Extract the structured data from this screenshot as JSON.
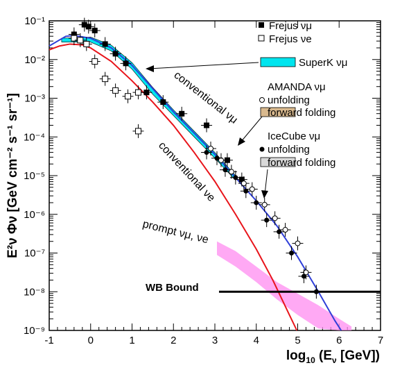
{
  "chart_data": {
    "type": "scatter",
    "xlabel_main": "log",
    "xlabel_sub": "10",
    "xlabel_rest": " (E",
    "xlabel_nu": "ν",
    "xlabel_unit": " [GeV])",
    "ylabel": "E²ν Φν [GeV cm⁻² s⁻¹ sr⁻¹]",
    "xlim": [
      -1,
      7
    ],
    "ylim_log10": [
      -9,
      -1
    ],
    "x_ticks": [
      "-1",
      "0",
      "1",
      "2",
      "3",
      "4",
      "5",
      "6",
      "7"
    ],
    "y_ticks": [
      "10⁻⁹",
      "10⁻⁸",
      "10⁻⁷",
      "10⁻⁶",
      "10⁻⁵",
      "10⁻⁴",
      "10⁻³",
      "10⁻²",
      "10⁻¹"
    ],
    "y_scale": "log",
    "legend": {
      "frejus_mu": "Frejus νμ",
      "frejus_e": "Frejus νe",
      "superk": "SuperK νμ",
      "amanda_title": "AMANDA νμ",
      "amanda_unfold": "unfolding",
      "amanda_ff": "forward folding",
      "icecube_title": "IceCube νμ",
      "icecube_unfold": "unfolding",
      "icecube_ff": "forward folding"
    },
    "annotations": {
      "conv_mu": "conventional νμ",
      "conv_e": "conventional νe",
      "prompt": "prompt νμ, νe",
      "wb": "WB Bound"
    },
    "colors": {
      "conv_e": "#e8141a",
      "conv_mu_band": "#2e3ed8",
      "superk": "#00e5ee",
      "prompt": "#ff8cf0",
      "amanda_ff": "#d9b98e",
      "icecube_ff": "#d9d9d9"
    },
    "series": [
      {
        "name": "Frejus νμ",
        "marker": "filled-square",
        "points": [
          [
            -0.4,
            -1.35
          ],
          [
            -0.15,
            -1.1
          ],
          [
            -0.05,
            -1.15
          ],
          [
            0.1,
            -1.25
          ],
          [
            0.35,
            -1.6
          ],
          [
            0.6,
            -1.85
          ],
          [
            0.85,
            -2.1
          ],
          [
            1.35,
            -2.85
          ],
          [
            1.75,
            -3.1
          ],
          [
            2.2,
            -3.4
          ],
          [
            2.8,
            -3.7
          ],
          [
            3.3,
            -4.6
          ],
          [
            3.65,
            -5.1
          ]
        ]
      },
      {
        "name": "Frejus νe",
        "marker": "open-square",
        "points": [
          [
            -0.4,
            -1.45
          ],
          [
            -0.25,
            -1.5
          ],
          [
            -0.1,
            -1.6
          ],
          [
            0.1,
            -2.05
          ],
          [
            0.35,
            -2.5
          ],
          [
            0.6,
            -2.8
          ],
          [
            0.9,
            -2.95
          ],
          [
            1.15,
            -2.85
          ],
          [
            1.15,
            -3.85
          ]
        ]
      },
      {
        "name": "AMANDA νμ unfolding",
        "marker": "open-circle",
        "points": [
          [
            2.9,
            -4.3
          ],
          [
            3.15,
            -4.6
          ],
          [
            3.4,
            -4.9
          ],
          [
            3.7,
            -5.2
          ],
          [
            3.9,
            -5.35
          ],
          [
            4.2,
            -5.75
          ],
          [
            4.45,
            -6.1
          ],
          [
            4.7,
            -6.4
          ],
          [
            5.0,
            -6.75
          ],
          [
            5.2,
            -7.5
          ]
        ]
      },
      {
        "name": "IceCube νμ unfolding",
        "marker": "filled-circle",
        "points": [
          [
            2.8,
            -4.4
          ],
          [
            3.05,
            -4.55
          ],
          [
            3.25,
            -4.85
          ],
          [
            3.5,
            -5.05
          ],
          [
            3.75,
            -5.4
          ],
          [
            4.0,
            -5.7
          ],
          [
            4.25,
            -6.15
          ],
          [
            4.55,
            -6.45
          ],
          [
            4.85,
            -7.0
          ],
          [
            5.15,
            -7.6
          ],
          [
            5.45,
            -8.0
          ]
        ]
      }
    ],
    "curves": {
      "conv_e": [
        [
          -1,
          -1.75
        ],
        [
          -0.75,
          -1.65
        ],
        [
          -0.5,
          -1.6
        ],
        [
          -0.2,
          -1.62
        ],
        [
          0,
          -1.7
        ],
        [
          0.5,
          -2.05
        ],
        [
          1,
          -2.55
        ],
        [
          1.5,
          -3.1
        ],
        [
          2,
          -3.7
        ],
        [
          2.5,
          -4.4
        ],
        [
          3,
          -5.15
        ],
        [
          3.5,
          -6.0
        ],
        [
          4,
          -6.9
        ],
        [
          4.4,
          -7.7
        ],
        [
          4.8,
          -8.6
        ],
        [
          4.98,
          -9
        ]
      ],
      "conv_mu": [
        [
          -1,
          -1.65
        ],
        [
          -0.6,
          -1.4
        ],
        [
          -0.4,
          -1.38
        ],
        [
          0,
          -1.45
        ],
        [
          0.5,
          -1.7
        ],
        [
          1,
          -2.15
        ],
        [
          1.5,
          -2.75
        ],
        [
          2,
          -3.35
        ],
        [
          2.5,
          -3.9
        ],
        [
          3,
          -4.45
        ],
        [
          3.5,
          -5.05
        ],
        [
          4,
          -5.65
        ],
        [
          4.5,
          -6.3
        ],
        [
          5,
          -7.1
        ],
        [
          5.5,
          -8.0
        ],
        [
          5.9,
          -8.75
        ],
        [
          6.05,
          -9
        ]
      ],
      "superk_band": [
        [
          -0.7,
          -1.45,
          -1.55
        ],
        [
          0,
          -1.42,
          -1.55
        ],
        [
          0.5,
          -1.63,
          -1.78
        ],
        [
          1,
          -2.08,
          -2.25
        ],
        [
          1.5,
          -2.72,
          -2.9
        ],
        [
          2,
          -3.3,
          -3.45
        ],
        [
          2.5,
          -3.85,
          -4.0
        ],
        [
          3,
          -4.4,
          -4.55
        ],
        [
          3.5,
          -5.0,
          -5.12
        ]
      ],
      "prompt_band": [
        [
          3.05,
          -6.7,
          -7.05
        ],
        [
          3.5,
          -6.95,
          -7.35
        ],
        [
          4,
          -7.35,
          -7.75
        ],
        [
          4.5,
          -7.75,
          -8.2
        ],
        [
          5,
          -8.05,
          -8.6
        ],
        [
          5.5,
          -8.35,
          -8.95
        ],
        [
          6,
          -8.7,
          -9.3
        ],
        [
          6.3,
          -8.9,
          -9.4
        ]
      ],
      "wb_bound": {
        "x": [
          3.1,
          7
        ],
        "y": -8
      }
    }
  }
}
